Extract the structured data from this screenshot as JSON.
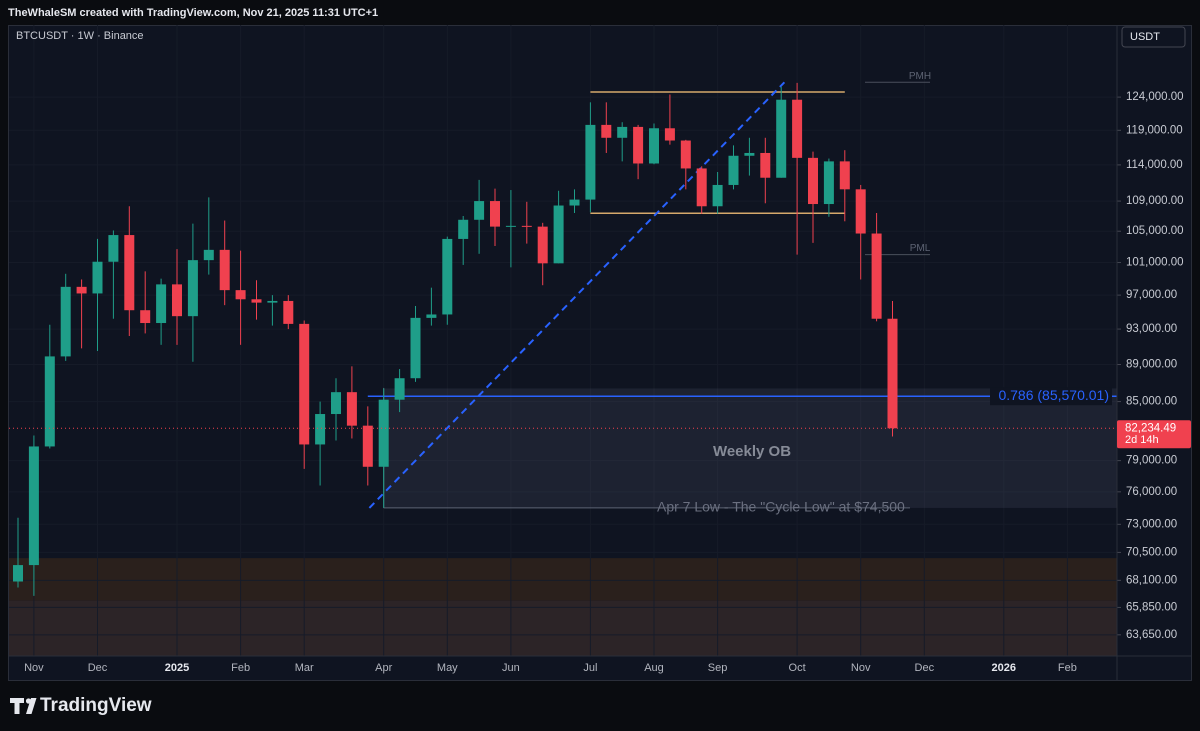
{
  "header": {
    "caption": "TheWhaleSM created with TradingView.com, Nov 21, 2025 11:31 UTC+1"
  },
  "chart_data": {
    "type": "candlestick",
    "title": "BTCUSDT · 1W · Binance",
    "currency": "USDT",
    "categories": [
      null,
      "Nov",
      null,
      null,
      null,
      "Dec",
      null,
      null,
      null,
      null,
      "2025",
      null,
      null,
      null,
      "Feb",
      null,
      null,
      null,
      "Mar",
      null,
      null,
      null,
      null,
      "Apr",
      null,
      null,
      null,
      "May",
      null,
      null,
      null,
      "Jun",
      null,
      null,
      null,
      null,
      "Jul",
      null,
      null,
      null,
      "Aug",
      null,
      null,
      null,
      "Sep",
      null,
      null,
      null,
      null,
      "Oct",
      null,
      null,
      null,
      "Nov",
      null,
      null,
      null,
      "Dec",
      null,
      null,
      null,
      null,
      "2026",
      null,
      null,
      null,
      "Feb",
      null,
      null,
      null
    ],
    "open": [
      68000,
      69400,
      80400,
      89900,
      98000,
      97200,
      101100,
      104500,
      95200,
      93700,
      98300,
      94500,
      101300,
      102600,
      97600,
      96500,
      96100,
      96300,
      93600,
      80600,
      83700,
      86000,
      82500,
      78400,
      85200,
      87500,
      94300,
      94700,
      104000,
      106500,
      109000,
      105600,
      105700,
      105600,
      100900,
      108400,
      109200,
      119800,
      117900,
      119500,
      114200,
      119300,
      117500,
      113500,
      108300,
      111200,
      115300,
      115700,
      112200,
      123600,
      115000,
      108600,
      114500,
      110600,
      104700,
      94200,
      null,
      null,
      null,
      null,
      null,
      null,
      null,
      null,
      null,
      null,
      null,
      null,
      null,
      null
    ],
    "high": [
      73600,
      81500,
      93500,
      99600,
      98900,
      104000,
      105100,
      108300,
      99900,
      99000,
      102700,
      106000,
      109500,
      106400,
      102500,
      98800,
      97000,
      97000,
      94000,
      85000,
      87500,
      88800,
      84500,
      86400,
      88500,
      95700,
      97900,
      104300,
      107000,
      111900,
      110700,
      110500,
      108900,
      106100,
      110400,
      110600,
      123200,
      123200,
      120200,
      119800,
      120000,
      124400,
      117600,
      113800,
      113000,
      116800,
      117900,
      117900,
      125600,
      126200,
      115900,
      114900,
      116100,
      111200,
      107400,
      96300,
      null,
      null,
      null,
      null,
      null,
      null,
      null,
      null,
      null,
      null,
      null,
      null,
      null,
      null
    ],
    "low": [
      67500,
      66800,
      80200,
      89400,
      90800,
      90500,
      94200,
      92200,
      92500,
      91200,
      91200,
      89300,
      99500,
      95800,
      91200,
      94100,
      93400,
      93000,
      78200,
      76600,
      81000,
      81200,
      76600,
      74500,
      83900,
      87100,
      93400,
      93500,
      100700,
      102100,
      103100,
      100400,
      103400,
      98200,
      100900,
      107400,
      107500,
      115700,
      114500,
      112000,
      114100,
      116900,
      110600,
      107300,
      107300,
      110600,
      112500,
      108700,
      112200,
      102000,
      103500,
      106900,
      106300,
      98900,
      93900,
      81400,
      null,
      null,
      null,
      null,
      null,
      null,
      null,
      null,
      null,
      null,
      null,
      null,
      null,
      null
    ],
    "close": [
      69400,
      80400,
      89900,
      98000,
      97200,
      101100,
      104500,
      95200,
      93700,
      98300,
      94500,
      101300,
      102600,
      97600,
      96500,
      96100,
      96300,
      93600,
      80600,
      83700,
      86000,
      82500,
      78400,
      85200,
      87500,
      94300,
      94700,
      104000,
      106500,
      109000,
      105600,
      105700,
      105600,
      100900,
      108400,
      109200,
      119800,
      117900,
      119500,
      114200,
      119300,
      117500,
      113500,
      108300,
      111200,
      115300,
      115700,
      112200,
      123600,
      115000,
      108600,
      114500,
      110600,
      104700,
      94200,
      82234.49,
      null,
      null,
      null,
      null,
      null,
      null,
      null,
      null,
      null,
      null,
      null,
      null,
      null,
      null
    ],
    "last_close_label": "82,234.49",
    "countdown": "2d 14h",
    "up_color": "#1f9e89",
    "down_color": "#f0414f",
    "ylim": [
      62000,
      135600
    ],
    "log_scale": true,
    "grid": true,
    "yticks": [
      {
        "value": 124000,
        "label": "124,000.00"
      },
      {
        "value": 119000,
        "label": "119,000.00"
      },
      {
        "value": 114000,
        "label": "114,000.00"
      },
      {
        "value": 109000,
        "label": "109,000.00"
      },
      {
        "value": 105000,
        "label": "105,000.00"
      },
      {
        "value": 101000,
        "label": "101,000.00"
      },
      {
        "value": 97000,
        "label": "97,000.00"
      },
      {
        "value": 93000,
        "label": "93,000.00"
      },
      {
        "value": 89000,
        "label": "89,000.00"
      },
      {
        "value": 85000,
        "label": "85,000.00"
      },
      {
        "value": 79000,
        "label": "79,000.00"
      },
      {
        "value": 76000,
        "label": "76,000.00"
      },
      {
        "value": 73000,
        "label": "73,000.00"
      },
      {
        "value": 70500,
        "label": "70,500.00"
      },
      {
        "value": 68100,
        "label": "68,100.00"
      },
      {
        "value": 65850,
        "label": "65,850.00"
      },
      {
        "value": 63650,
        "label": "63,650.00"
      }
    ],
    "zones": [
      {
        "from": 66400,
        "to": 70000,
        "color": "#2a201c"
      },
      {
        "from": 62000,
        "to": 66400,
        "color": "#2c2427"
      }
    ],
    "range": {
      "high": 124780,
      "low": 107370,
      "color": "#d6a96c"
    },
    "pmh": {
      "label": "PMH",
      "value": 126300
    },
    "pml": {
      "label": "PML",
      "value": 102000
    },
    "fib": {
      "label": "0.786 (85,570.01)",
      "value": 85570.01,
      "color": "#2962ff"
    },
    "order_block": {
      "label": "Weekly OB",
      "from": 74500,
      "to": 86400
    },
    "cycle_low": {
      "label": "Apr 7 Low - The \"Cycle Low\" at $74,500",
      "value": 74500
    },
    "trendline": [
      74500,
      126300
    ]
  },
  "footer": {
    "brand": "TradingView"
  }
}
